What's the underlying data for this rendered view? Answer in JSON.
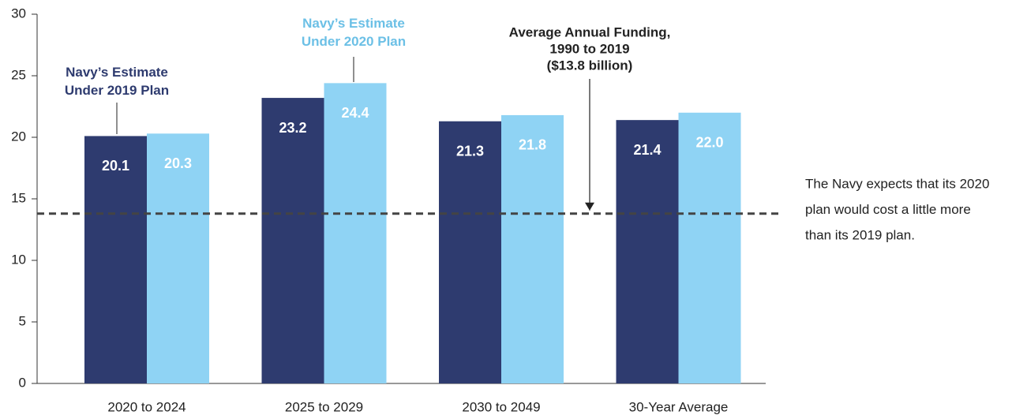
{
  "chart_data": {
    "type": "bar",
    "categories": [
      "2020 to 2024",
      "2025 to 2029",
      "2030 to 2049",
      "30-Year Average"
    ],
    "series": [
      {
        "name": "Navy’s Estimate Under 2019 Plan",
        "color": "#2e3b6f",
        "label_color": "#2e3b6f",
        "values": [
          20.1,
          23.2,
          21.3,
          21.4
        ],
        "value_labels": [
          "20.1",
          "23.2",
          "21.3",
          "21.4"
        ]
      },
      {
        "name": "Navy’s Estimate Under 2020 Plan",
        "color": "#8fd3f4",
        "label_color": "#6cc0e6",
        "values": [
          20.3,
          24.4,
          21.8,
          22.0
        ],
        "value_labels": [
          "20.3",
          "24.4",
          "21.8",
          "22.0"
        ]
      }
    ],
    "ylim": [
      0,
      30
    ],
    "yticks": [
      0,
      5,
      10,
      15,
      20,
      25,
      30
    ],
    "reference_line": {
      "value": 13.8,
      "lines": [
        "Average Annual Funding,",
        "1990 to 2019",
        "($13.8 billion)"
      ]
    },
    "note": {
      "lines": [
        "The Navy expects that its 2020",
        "plan would cost a little more",
        "than its 2019 plan."
      ]
    }
  }
}
